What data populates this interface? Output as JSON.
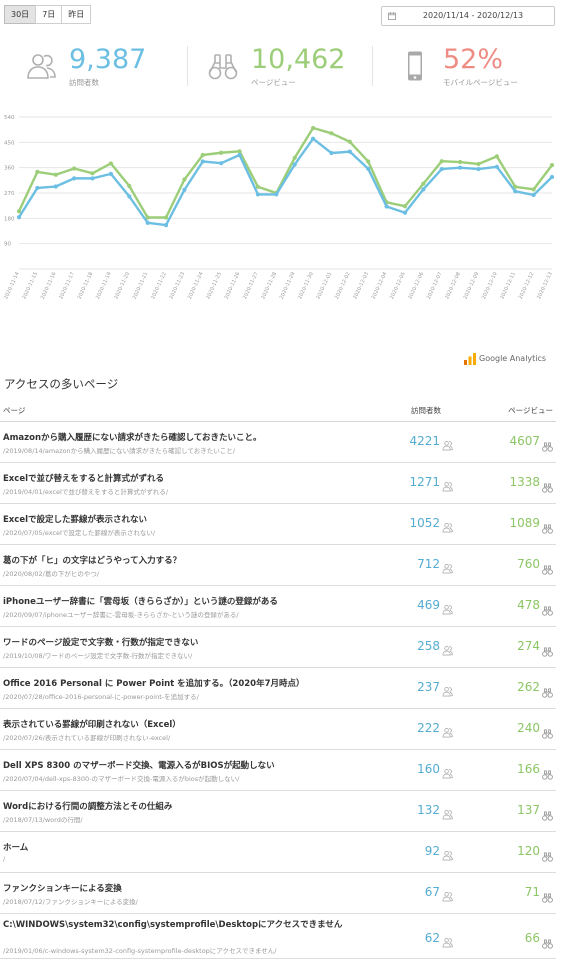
{
  "range_tabs": [
    {
      "label": "30日",
      "active": true
    },
    {
      "label": "7日",
      "active": false
    },
    {
      "label": "昨日",
      "active": false
    }
  ],
  "date_range": "2020/11/14 - 2020/12/13",
  "stats": {
    "visitors": {
      "value": "9,387",
      "label": "訪問者数",
      "color": "#6cbfe2",
      "icon": "users-icon"
    },
    "pageviews": {
      "value": "10,462",
      "label": "ページビュー",
      "color": "#9ccd78",
      "icon": "binoculars-icon"
    },
    "mobile": {
      "value": "52%",
      "label": "モバイルページビュー",
      "color": "#ee8c84",
      "icon": "mobile-phone-icon"
    }
  },
  "chart_data": {
    "type": "line",
    "x": [
      "2020-11-14",
      "2020-11-15",
      "2020-11-16",
      "2020-11-17",
      "2020-11-18",
      "2020-11-19",
      "2020-11-20",
      "2020-11-21",
      "2020-11-22",
      "2020-11-23",
      "2020-11-24",
      "2020-11-25",
      "2020-11-26",
      "2020-11-27",
      "2020-11-28",
      "2020-11-29",
      "2020-11-30",
      "2020-12-01",
      "2020-12-02",
      "2020-12-03",
      "2020-12-04",
      "2020-12-05",
      "2020-12-06",
      "2020-12-07",
      "2020-12-08",
      "2020-12-09",
      "2020-12-10",
      "2020-12-11",
      "2020-12-12",
      "2020-12-13"
    ],
    "series": [
      {
        "color": "#9ccd78",
        "values": [
          205,
          345,
          335,
          357,
          340,
          375,
          295,
          183,
          183,
          318,
          405,
          413,
          418,
          292,
          270,
          395,
          501,
          482,
          452,
          382,
          237,
          223,
          303,
          383,
          380,
          373,
          400,
          292,
          283,
          369
        ]
      },
      {
        "color": "#6cbfe2",
        "values": [
          184,
          288,
          293,
          322,
          322,
          338,
          258,
          164,
          156,
          281,
          382,
          376,
          405,
          265,
          265,
          371,
          463,
          412,
          417,
          356,
          222,
          200,
          283,
          355,
          360,
          355,
          363,
          276,
          263,
          327
        ]
      }
    ],
    "yticks": [
      0,
      90,
      180,
      270,
      360,
      450,
      540
    ],
    "ylim": [
      0,
      540
    ],
    "grid": true
  },
  "ga_label": "Google Analytics",
  "section_title": "アクセスの多いページ",
  "table": {
    "headers": {
      "page": "ページ",
      "visitors": "訪問者数",
      "pageviews": "ページビュー"
    },
    "rows": [
      {
        "title": "Amazonから購入履歴にない請求がきたら確認しておきたいこと。",
        "path": "/2019/08/14/amazonから購入履歴にない請求がきたら確認しておきたいこと/",
        "visitors": "4221",
        "pageviews": "4607"
      },
      {
        "title": "Excelで並び替えをすると計算式がずれる",
        "path": "/2019/04/01/excelで並び替えをすると計算式がずれる/",
        "visitors": "1271",
        "pageviews": "1338"
      },
      {
        "title": "Excelで設定した罫線が表示されない",
        "path": "/2020/07/05/excelで設定した罫線が表示されない/",
        "visitors": "1052",
        "pageviews": "1089"
      },
      {
        "title": "葛の下が「ヒ」の文字はどうやって入力する？",
        "path": "/2020/08/02/葛の下がヒのやつ/",
        "visitors": "712",
        "pageviews": "760"
      },
      {
        "title": "iPhoneユーザー辞書に「雲母坂（きららざか）」という謎の登録がある",
        "path": "/2020/09/07/iphoneユーザー辞書に-雲母坂-きららざか-という謎の登録がある/",
        "visitors": "469",
        "pageviews": "478"
      },
      {
        "title": "ワードのページ設定で文字数・行数が指定できない",
        "path": "/2019/10/08/ワードのページ設定で文字数-行数が指定できない/",
        "visitors": "258",
        "pageviews": "274"
      },
      {
        "title": "Office 2016 Personal に Power Point を追加する。（2020年7月時点）",
        "path": "/2020/07/28/office-2016-personal-に-power-point-を追加する/",
        "visitors": "237",
        "pageviews": "262"
      },
      {
        "title": "表示されている罫線が印刷されない（Excel）",
        "path": "/2020/07/26/表示されている罫線が印刷されない-excel/",
        "visitors": "222",
        "pageviews": "240"
      },
      {
        "title": "Dell XPS 8300 のマザーボード交換、電源入るがBIOSが起動しない",
        "path": "/2020/07/04/dell-xps-8300-のマザーボード交換-電源入るがbiosが起動しない/",
        "visitors": "160",
        "pageviews": "166"
      },
      {
        "title": "Wordにおける行間の調整方法とその仕組み",
        "path": "/2018/07/13/wordの行間/",
        "visitors": "132",
        "pageviews": "137"
      },
      {
        "title": "ホーム",
        "path": "/",
        "visitors": "92",
        "pageviews": "120"
      },
      {
        "title": "ファンクションキーによる変換",
        "path": "/2018/07/12/ファンクションキーによる変換/",
        "visitors": "67",
        "pageviews": "71"
      },
      {
        "title": "C:\\WINDOWS\\system32\\config\\systemprofile\\Desktopにアクセスできません",
        "path": "/2019/01/06/c-windows-system32-config-systemprofile-desktopにアクセスできません/",
        "visitors": "62",
        "pageviews": "66"
      }
    ]
  }
}
